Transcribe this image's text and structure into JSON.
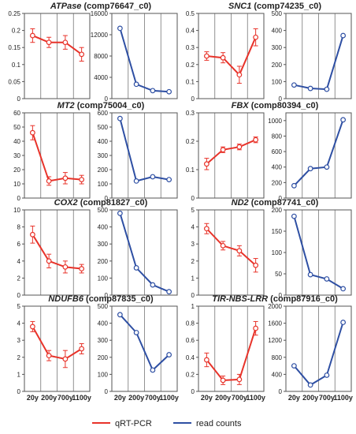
{
  "legend": {
    "entries": [
      {
        "label": "qRT-PCR",
        "color": "#e8332a"
      },
      {
        "label": "read counts",
        "color": "#2e4fa3"
      }
    ]
  },
  "colors": {
    "qrt": "#e8332a",
    "reads": "#2e4fa3",
    "grid": "#444444"
  },
  "chart_data": [
    {
      "type": "line",
      "title_italic": "ATPase",
      "title_rest": " (comp76647_c0)",
      "categories": [
        "20y",
        "200y",
        "700y",
        "1100y"
      ],
      "series": [
        {
          "name": "qRT-PCR",
          "values": [
            0.185,
            0.165,
            0.165,
            0.13
          ],
          "errors": [
            0.02,
            0.015,
            0.02,
            0.02
          ],
          "ylim": [
            0,
            0.25
          ],
          "ticks": [
            "0",
            "0.05",
            "0.1",
            "0.15",
            "0.2",
            "0.25"
          ]
        },
        {
          "name": "read counts",
          "values": [
            13200,
            2700,
            1500,
            1300
          ],
          "ylim": [
            0,
            16000
          ],
          "ticks": [
            "0",
            "4000",
            "8000",
            "12000",
            "16000"
          ]
        }
      ]
    },
    {
      "type": "line",
      "title_italic": "SNC1",
      "title_rest": " (comp74235_c0)",
      "categories": [
        "20y",
        "200y",
        "700y",
        "1100y"
      ],
      "series": [
        {
          "name": "qRT-PCR",
          "values": [
            0.25,
            0.24,
            0.14,
            0.36
          ],
          "errors": [
            0.025,
            0.03,
            0.05,
            0.05
          ],
          "ylim": [
            0,
            0.5
          ],
          "ticks": [
            "0",
            "0.1",
            "0.2",
            "0.3",
            "0.4",
            "0.5"
          ]
        },
        {
          "name": "read counts",
          "values": [
            80,
            60,
            55,
            370
          ],
          "ylim": [
            0,
            500
          ],
          "ticks": [
            "0",
            "100",
            "200",
            "300",
            "400",
            "500"
          ]
        }
      ]
    },
    {
      "type": "line",
      "title_italic": "MT2",
      "title_rest": " (comp75004_c0)",
      "categories": [
        "20y",
        "200y",
        "700y",
        "1100y"
      ],
      "series": [
        {
          "name": "qRT-PCR",
          "values": [
            46,
            12,
            14,
            13
          ],
          "errors": [
            5,
            3,
            4,
            3
          ],
          "ylim": [
            0,
            60
          ],
          "ticks": [
            "0",
            "10",
            "20",
            "30",
            "40",
            "50",
            "60"
          ]
        },
        {
          "name": "read counts",
          "values": [
            560,
            120,
            150,
            130
          ],
          "ylim": [
            0,
            600
          ],
          "ticks": [
            "0",
            "100",
            "200",
            "300",
            "400",
            "500",
            "600"
          ]
        }
      ]
    },
    {
      "type": "line",
      "title_italic": "FBX",
      "title_rest": " (comp80394_c0)",
      "categories": [
        "20y",
        "200y",
        "700y",
        "1100y"
      ],
      "series": [
        {
          "name": "qRT-PCR",
          "values": [
            0.12,
            0.17,
            0.18,
            0.205
          ],
          "errors": [
            0.02,
            0.01,
            0.01,
            0.01
          ],
          "ylim": [
            0,
            0.3
          ],
          "ticks": [
            "0",
            "0.1",
            "0.2",
            "0.3"
          ]
        },
        {
          "name": "read counts",
          "values": [
            160,
            380,
            400,
            1010
          ],
          "ylim": [
            0,
            1100
          ],
          "ticks": [
            "0",
            "200",
            "400",
            "600",
            "800",
            "1000"
          ]
        }
      ]
    },
    {
      "type": "line",
      "title_italic": "COX2",
      "title_rest": " (comp81827_c0)",
      "categories": [
        "20y",
        "200y",
        "700y",
        "1100y"
      ],
      "series": [
        {
          "name": "qRT-PCR",
          "values": [
            7.1,
            4,
            3.3,
            3.1
          ],
          "errors": [
            1,
            0.8,
            0.7,
            0.5
          ],
          "ylim": [
            0,
            10
          ],
          "ticks": [
            "0",
            "2",
            "4",
            "6",
            "8",
            "10"
          ]
        },
        {
          "name": "read counts",
          "values": [
            480,
            160,
            60,
            20
          ],
          "ylim": [
            0,
            500
          ],
          "ticks": [
            "0",
            "100",
            "200",
            "300",
            "400",
            "500"
          ]
        }
      ]
    },
    {
      "type": "line",
      "title_italic": "ND2",
      "title_rest": " (comp87741_c0)",
      "categories": [
        "20y",
        "200y",
        "700y",
        "1100y"
      ],
      "series": [
        {
          "name": "qRT-PCR",
          "values": [
            3.9,
            2.9,
            2.6,
            1.75
          ],
          "errors": [
            0.3,
            0.25,
            0.3,
            0.4
          ],
          "ylim": [
            0,
            5
          ],
          "ticks": [
            "0",
            "1",
            "2",
            "3",
            "4",
            "5"
          ]
        },
        {
          "name": "read counts",
          "values": [
            185,
            48,
            38,
            15
          ],
          "ylim": [
            0,
            200
          ],
          "ticks": [
            "0",
            "50",
            "100",
            "150",
            "200"
          ]
        }
      ]
    },
    {
      "type": "line",
      "title_italic": "NDUFB6",
      "title_rest": " (comp87835_c0)",
      "categories": [
        "20y",
        "200y",
        "700y",
        "1100y"
      ],
      "series": [
        {
          "name": "qRT-PCR",
          "values": [
            3.8,
            2.1,
            1.9,
            2.5
          ],
          "errors": [
            0.3,
            0.3,
            0.5,
            0.3
          ],
          "ylim": [
            0,
            5
          ],
          "ticks": [
            "0",
            "1",
            "2",
            "3",
            "4",
            "5"
          ]
        },
        {
          "name": "read counts",
          "values": [
            450,
            345,
            125,
            215
          ],
          "ylim": [
            0,
            500
          ],
          "ticks": [
            "0",
            "100",
            "200",
            "300",
            "400",
            "500"
          ]
        }
      ]
    },
    {
      "type": "line",
      "title_italic": "TIR-NBS-LRR",
      "title_rest": " (comp87916_c0)",
      "categories": [
        "20y",
        "200y",
        "700y",
        "1100y"
      ],
      "series": [
        {
          "name": "qRT-PCR",
          "values": [
            0.37,
            0.13,
            0.14,
            0.74
          ],
          "errors": [
            0.08,
            0.05,
            0.06,
            0.08
          ],
          "ylim": [
            0,
            1
          ],
          "ticks": [
            "0",
            "0.2",
            "0.4",
            "0.6",
            "0.8",
            "1"
          ]
        },
        {
          "name": "read counts",
          "values": [
            600,
            150,
            380,
            1620
          ],
          "ylim": [
            0,
            2000
          ],
          "ticks": [
            "0",
            "400",
            "800",
            "1200",
            "1600",
            "2000"
          ]
        }
      ]
    }
  ]
}
